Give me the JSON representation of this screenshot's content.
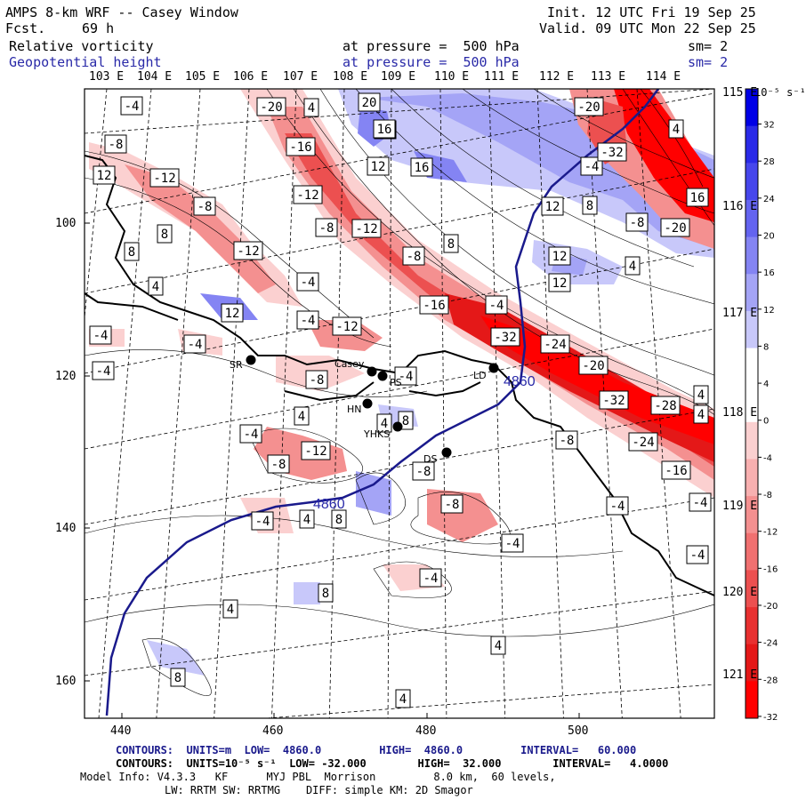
{
  "header": {
    "model": "AMPS 8-km WRF -- Casey Window",
    "fcst_label": "Fcst.",
    "fcst_value": "69 h",
    "init": "Init. 12 UTC Fri 19 Sep 25",
    "valid": "Valid. 09 UTC Mon 22 Sep 25",
    "field1": "Relative vorticity",
    "field1_level": "at pressure =  500 hPa",
    "field1_sm": "sm= 2",
    "field2": "Geopotential height",
    "field2_level": "at pressure =  500 hPa",
    "field2_sm": "sm= 2",
    "field2_color": "#2a2aa8"
  },
  "axes": {
    "top_lon": [
      "103 E",
      "104 E",
      "105 E",
      "106 E",
      "107 E",
      "108 E",
      "109 E",
      "110 E",
      "111 E",
      "112 E",
      "113 E",
      "114 E"
    ],
    "right_lon": [
      "115 E",
      "116 E",
      "117 E",
      "118 E",
      "119 E",
      "120 E",
      "121 E"
    ],
    "y_ticks": [
      "100",
      "120",
      "140",
      "160"
    ],
    "x_ticks": [
      "440",
      "460",
      "480",
      "500"
    ]
  },
  "colorbar": {
    "unit": "10⁻⁵ s⁻¹",
    "labels": [
      "32",
      "28",
      "24",
      "20",
      "16",
      "12",
      "8",
      "4",
      "0",
      "-4",
      "-8",
      "-12",
      "-16",
      "-20",
      "-24",
      "-28",
      "-32"
    ],
    "colors": [
      "#0000e6",
      "#2a2ae8",
      "#4646ec",
      "#6464f0",
      "#8484f3",
      "#a4a4f6",
      "#c8c8fa",
      "#ffffff",
      "#ffffff",
      "#fbd0d0",
      "#f8b0b0",
      "#f49090",
      "#f07070",
      "#ec5050",
      "#e83030",
      "#e41818",
      "#ff0000"
    ]
  },
  "stations": [
    {
      "name": "SR"
    },
    {
      "name": "Casey"
    },
    {
      "name": "PS"
    },
    {
      "name": "LD"
    },
    {
      "name": "HN"
    },
    {
      "name": "YHKS"
    },
    {
      "name": "DS"
    }
  ],
  "height_contour_labels": [
    "4860",
    "4860"
  ],
  "vort_labels": [
    "-4",
    "-8",
    "-12",
    "-16",
    "-20",
    "-24",
    "-28",
    "-32",
    "4",
    "8",
    "12",
    "16",
    "20"
  ],
  "footer": {
    "line1": "CONTOURS:  UNITS=m  LOW=  4860.0         HIGH=  4860.0         INTERVAL=   60.000",
    "line2": "CONTOURS:  UNITS=10⁻⁵ s⁻¹  LOW= -32.000        HIGH=  32.000        INTERVAL=   4.0000",
    "line3": "Model Info: V4.3.3   KF      MYJ PBL  Morrison         8.0 km,  60 levels,",
    "line4": "LW: RRTM SW: RRTMG    DIFF: simple KM: 2D Smagor"
  }
}
